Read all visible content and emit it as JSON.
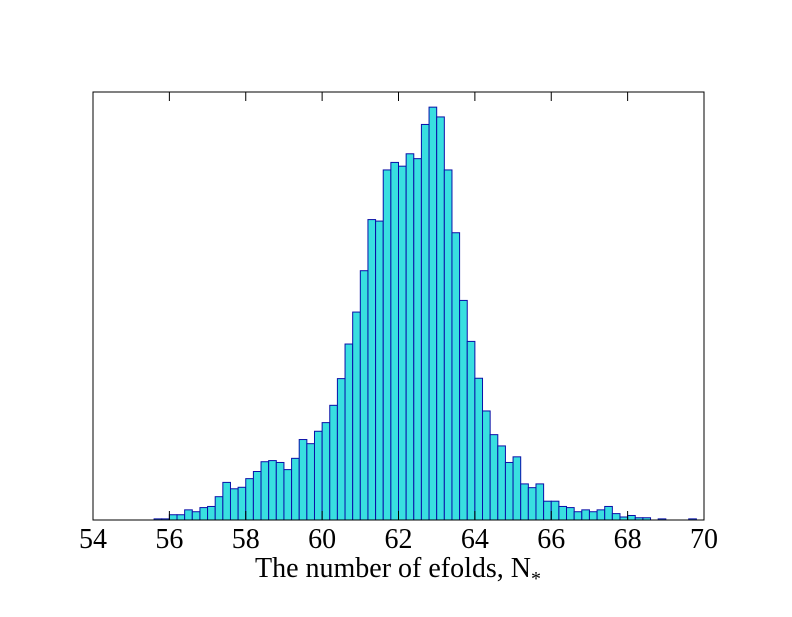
{
  "colors": {
    "bar_fill": "#38dfe0",
    "bar_edge": "#0a10a8",
    "axes": "#000000",
    "background": "#ffffff"
  },
  "chart_data": {
    "type": "bar",
    "title": "",
    "xlabel": "The number of efolds, N",
    "xlabel_subscript": "*",
    "ylabel": "",
    "xlim": [
      54,
      70
    ],
    "ylim": [
      0,
      1.0
    ],
    "xticks": [
      54,
      56,
      58,
      60,
      62,
      64,
      66,
      68,
      70
    ],
    "yticks_visible": false,
    "grid": false,
    "legend": "none",
    "bin_width": 0.2,
    "bin_start": 55.2,
    "values": [
      0.0,
      0.0,
      0.003,
      0.003,
      0.014,
      0.014,
      0.027,
      0.022,
      0.033,
      0.036,
      0.062,
      0.1,
      0.083,
      0.087,
      0.11,
      0.129,
      0.155,
      0.158,
      0.153,
      0.134,
      0.164,
      0.214,
      0.203,
      0.236,
      0.259,
      0.305,
      0.376,
      0.468,
      0.553,
      0.663,
      0.799,
      0.795,
      0.931,
      0.951,
      0.941,
      0.974,
      0.961,
      1.052,
      1.098,
      1.072,
      0.931,
      0.764,
      0.584,
      0.475,
      0.377,
      0.29,
      0.227,
      0.197,
      0.153,
      0.168,
      0.096,
      0.086,
      0.096,
      0.05,
      0.05,
      0.036,
      0.033,
      0.022,
      0.027,
      0.022,
      0.027,
      0.036,
      0.017,
      0.008,
      0.012,
      0.006,
      0.006,
      0.0,
      0.003,
      0.0,
      0.0,
      0.0,
      0.003
    ]
  }
}
